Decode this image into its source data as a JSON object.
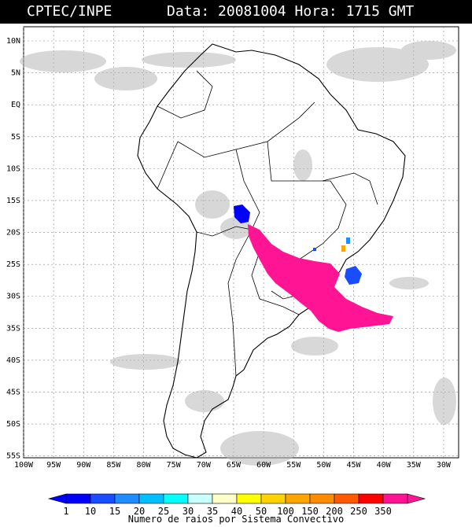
{
  "header": {
    "source": "CPTEC/INPE",
    "datetime": "Data: 20081004 Hora: 1715 GMT"
  },
  "map": {
    "lat_labels": [
      "10N",
      "5N",
      "EQ",
      "5S",
      "10S",
      "15S",
      "20S",
      "25S",
      "30S",
      "35S",
      "40S",
      "45S",
      "50S",
      "55S"
    ],
    "lon_labels": [
      "100W",
      "95W",
      "90W",
      "85W",
      "80W",
      "75W",
      "70W",
      "65W",
      "60W",
      "55W",
      "50W",
      "45W",
      "40W",
      "35W",
      "30W"
    ]
  },
  "legend": {
    "values": [
      "1",
      "10",
      "15",
      "20",
      "25",
      "30",
      "35",
      "40",
      "50",
      "100",
      "150",
      "200",
      "250",
      "350"
    ],
    "title": "Numero de raios por Sistema Convectivo",
    "colors": [
      "#0000ff",
      "#1a4dff",
      "#1f8cff",
      "#00bfff",
      "#00ffff",
      "#c8ffff",
      "#ffffc8",
      "#ffff00",
      "#ffd200",
      "#ffa500",
      "#ff8c00",
      "#ff5a00",
      "#ff0000",
      "#ff1493"
    ]
  }
}
